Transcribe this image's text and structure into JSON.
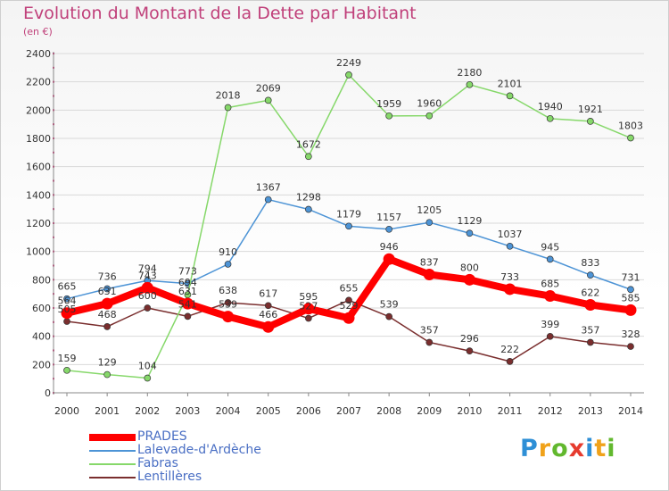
{
  "header": {
    "title": "Evolution du Montant de la Dette par Habitant",
    "unit": "(en €)"
  },
  "brand": {
    "letters": [
      "P",
      "r",
      "o",
      "x",
      "i",
      "t",
      "i"
    ],
    "colors": [
      "#2e8fd6",
      "#f0a21a",
      "#62b82e",
      "#e63b2e",
      "#2e8fd6",
      "#f0a21a",
      "#62b82e"
    ]
  },
  "chart_data": {
    "type": "line",
    "x": [
      2000,
      2001,
      2002,
      2003,
      2004,
      2005,
      2006,
      2007,
      2008,
      2009,
      2010,
      2011,
      2012,
      2013,
      2014
    ],
    "ylim": [
      0,
      2400
    ],
    "yticks": [
      0,
      200,
      400,
      600,
      800,
      1000,
      1200,
      1400,
      1600,
      1800,
      2000,
      2200,
      2400
    ],
    "grid": true,
    "legend": "bottom-left",
    "series": [
      {
        "name": "PRADES",
        "color": "#ff0000",
        "values": [
          564,
          631,
          743,
          631,
          539,
          466,
          595,
          529,
          946,
          837,
          800,
          733,
          685,
          622,
          585
        ]
      },
      {
        "name": "Lalevade-d'Ardèche",
        "color": "#4d94d6",
        "values": [
          665,
          736,
          794,
          773,
          910,
          1367,
          1298,
          1179,
          1157,
          1205,
          1129,
          1037,
          945,
          833,
          731
        ]
      },
      {
        "name": "Fabras",
        "color": "#86d86a",
        "values": [
          159,
          129,
          104,
          694,
          2018,
          2069,
          1672,
          2249,
          1959,
          1960,
          2180,
          2101,
          1940,
          1921,
          1803
        ]
      },
      {
        "name": "Lentillères",
        "color": "#7a2e2e",
        "values": [
          505,
          468,
          600,
          541,
          638,
          617,
          527,
          655,
          539,
          357,
          296,
          222,
          399,
          357,
          328
        ]
      }
    ]
  }
}
